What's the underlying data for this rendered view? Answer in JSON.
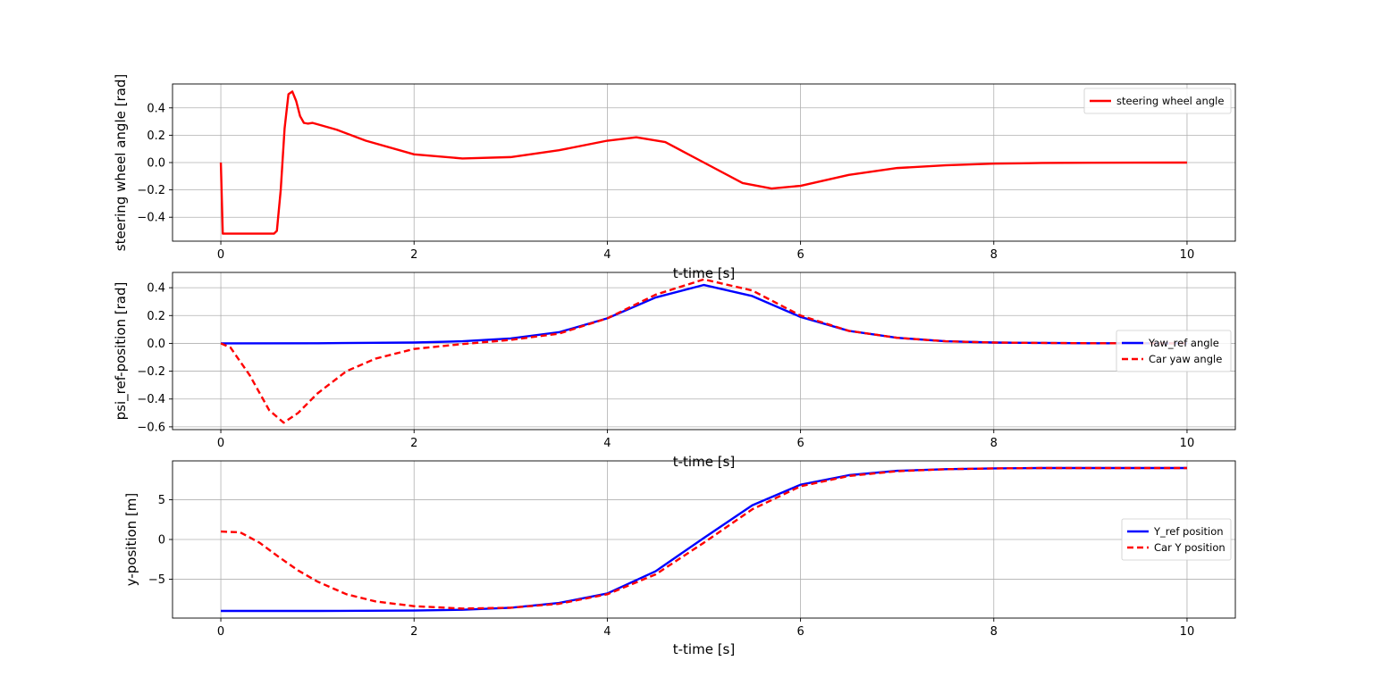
{
  "chart_data": [
    {
      "type": "line",
      "xlabel": "t-time [s]",
      "ylabel": "steering wheel angle [rad]",
      "xlim": [
        -0.5,
        10.5
      ],
      "ylim": [
        -0.575,
        0.575
      ],
      "xticks": [
        0,
        2,
        4,
        6,
        8,
        10
      ],
      "yticks": [
        -0.4,
        -0.2,
        0.0,
        0.2,
        0.4
      ],
      "xtick_labels": [
        "0",
        "2",
        "4",
        "6",
        "8",
        "10"
      ],
      "ytick_labels": [
        "−0.4",
        "−0.2",
        "0.0",
        "0.2",
        "0.4"
      ],
      "grid": true,
      "legend_position": "upper-right",
      "series": [
        {
          "name": "steering wheel angle",
          "color": "#ff0000",
          "style": "solid",
          "x": [
            0,
            0.02,
            0.1,
            0.3,
            0.5,
            0.55,
            0.58,
            0.62,
            0.66,
            0.7,
            0.74,
            0.78,
            0.82,
            0.86,
            0.9,
            0.95,
            1.0,
            1.2,
            1.5,
            2.0,
            2.5,
            3.0,
            3.5,
            4.0,
            4.3,
            4.6,
            5.0,
            5.4,
            5.7,
            6.0,
            6.5,
            7.0,
            7.5,
            8.0,
            8.5,
            9.0,
            10.0
          ],
          "y": [
            0.0,
            -0.52,
            -0.52,
            -0.52,
            -0.52,
            -0.52,
            -0.5,
            -0.2,
            0.25,
            0.5,
            0.52,
            0.45,
            0.34,
            0.29,
            0.285,
            0.29,
            0.28,
            0.24,
            0.16,
            0.06,
            0.03,
            0.04,
            0.09,
            0.16,
            0.185,
            0.15,
            0.0,
            -0.15,
            -0.19,
            -0.17,
            -0.09,
            -0.04,
            -0.02,
            -0.008,
            -0.003,
            -0.001,
            0.0
          ]
        }
      ]
    },
    {
      "type": "line",
      "xlabel": "t-time [s]",
      "ylabel": "psi_ref-position [rad]",
      "xlim": [
        -0.5,
        10.5
      ],
      "ylim": [
        -0.62,
        0.51
      ],
      "xticks": [
        0,
        2,
        4,
        6,
        8,
        10
      ],
      "yticks": [
        -0.6,
        -0.4,
        -0.2,
        0.0,
        0.2,
        0.4
      ],
      "xtick_labels": [
        "0",
        "2",
        "4",
        "6",
        "8",
        "10"
      ],
      "ytick_labels": [
        "−0.6",
        "−0.4",
        "−0.2",
        "0.0",
        "0.2",
        "0.4"
      ],
      "grid": true,
      "legend_position": "center-right",
      "series": [
        {
          "name": "Yaw_ref angle",
          "color": "#0000ff",
          "style": "solid",
          "x": [
            0,
            1,
            2,
            2.5,
            3,
            3.5,
            4,
            4.5,
            5,
            5.5,
            6,
            6.5,
            7,
            7.5,
            8,
            8.5,
            9,
            10
          ],
          "y": [
            0,
            0.001,
            0.006,
            0.015,
            0.035,
            0.08,
            0.18,
            0.33,
            0.42,
            0.34,
            0.19,
            0.09,
            0.04,
            0.015,
            0.006,
            0.003,
            0.001,
            0.0
          ]
        },
        {
          "name": "Car yaw angle",
          "color": "#ff0000",
          "style": "dashed",
          "x": [
            0,
            0.1,
            0.3,
            0.5,
            0.65,
            0.8,
            1.0,
            1.3,
            1.6,
            2.0,
            2.5,
            3.0,
            3.5,
            4.0,
            4.5,
            5.0,
            5.5,
            6.0,
            6.5,
            7.0,
            7.5,
            8.0,
            8.5,
            9.0,
            10.0
          ],
          "y": [
            0,
            -0.03,
            -0.23,
            -0.48,
            -0.57,
            -0.5,
            -0.36,
            -0.2,
            -0.11,
            -0.04,
            -0.005,
            0.025,
            0.07,
            0.18,
            0.35,
            0.46,
            0.38,
            0.2,
            0.09,
            0.04,
            0.015,
            0.006,
            0.003,
            0.001,
            0.0
          ]
        }
      ]
    },
    {
      "type": "line",
      "xlabel": "t-time [s]",
      "ylabel": "y-position [m]",
      "xlim": [
        -0.5,
        10.5
      ],
      "ylim": [
        -9.9,
        9.9
      ],
      "xticks": [
        0,
        2,
        4,
        6,
        8,
        10
      ],
      "yticks": [
        -5,
        0,
        5
      ],
      "xtick_labels": [
        "0",
        "2",
        "4",
        "6",
        "8",
        "10"
      ],
      "ytick_labels": [
        "−5",
        "0",
        "5"
      ],
      "grid": true,
      "legend_position": "center-right",
      "series": [
        {
          "name": "Y_ref position",
          "color": "#0000ff",
          "style": "solid",
          "x": [
            0,
            1,
            2,
            2.5,
            3,
            3.5,
            4,
            4.5,
            5,
            5.5,
            6,
            6.5,
            7,
            7.5,
            8,
            8.5,
            9,
            10
          ],
          "y": [
            -9,
            -9,
            -8.95,
            -8.85,
            -8.6,
            -8.0,
            -6.8,
            -4.0,
            0.2,
            4.3,
            6.9,
            8.1,
            8.65,
            8.85,
            8.95,
            9.0,
            9.0,
            9.0
          ]
        },
        {
          "name": "Car Y position",
          "color": "#ff0000",
          "style": "dashed",
          "x": [
            0,
            0.2,
            0.4,
            0.6,
            0.8,
            1.0,
            1.3,
            1.6,
            2.0,
            2.5,
            3.0,
            3.5,
            4.0,
            4.5,
            5.0,
            5.5,
            6.0,
            6.5,
            7.0,
            7.5,
            8.0,
            8.5,
            9.0,
            10.0
          ],
          "y": [
            1.0,
            0.9,
            -0.4,
            -2.2,
            -3.9,
            -5.3,
            -6.9,
            -7.8,
            -8.4,
            -8.7,
            -8.6,
            -8.1,
            -6.9,
            -4.4,
            -0.4,
            3.8,
            6.7,
            8.0,
            8.6,
            8.85,
            8.95,
            9.0,
            9.0,
            9.0
          ]
        }
      ]
    }
  ]
}
